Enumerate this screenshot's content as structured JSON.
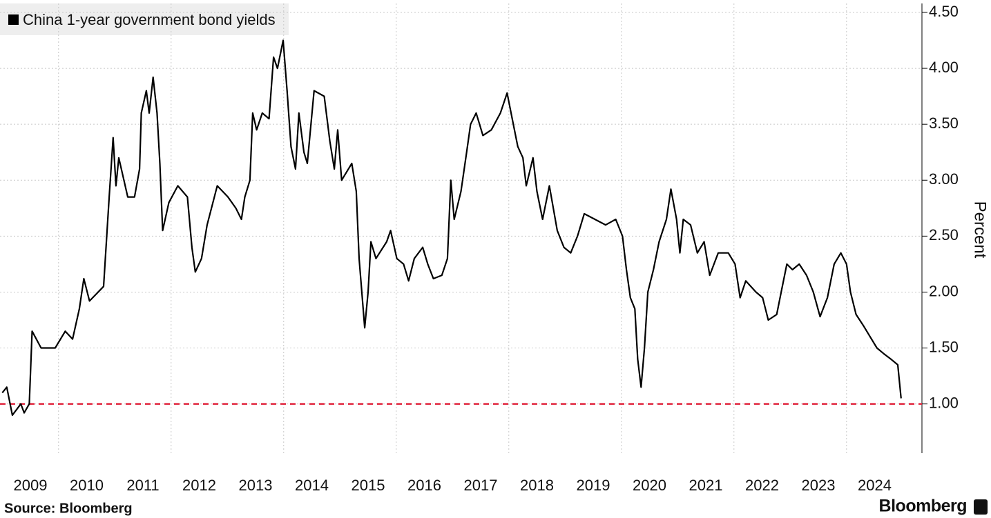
{
  "chart_data": {
    "type": "line",
    "legend": "China 1-year government bond yields",
    "ylabel": "Percent",
    "source": "Source: Bloomberg",
    "brand": "Bloomberg",
    "reference_line": {
      "value": 1,
      "color": "#e0243c"
    },
    "series": [
      {
        "name": "China 1-year government bond yields",
        "color": "#000000",
        "x": [
          2009.0,
          2009.08,
          2009.18,
          2009.33,
          2009.39,
          2009.48,
          2009.53,
          2009.69,
          2009.94,
          2010.12,
          2010.25,
          2010.37,
          2010.45,
          2010.55,
          2010.8,
          2010.9,
          2010.97,
          2011.02,
          2011.07,
          2011.23,
          2011.35,
          2011.44,
          2011.47,
          2011.56,
          2011.61,
          2011.68,
          2011.75,
          2011.8,
          2011.85,
          2011.96,
          2012.12,
          2012.29,
          2012.37,
          2012.43,
          2012.54,
          2012.64,
          2012.82,
          2013.01,
          2013.15,
          2013.25,
          2013.31,
          2013.4,
          2013.45,
          2013.52,
          2013.62,
          2013.74,
          2013.82,
          2013.89,
          2013.99,
          2014.06,
          2014.13,
          2014.21,
          2014.27,
          2014.36,
          2014.42,
          2014.54,
          2014.72,
          2014.82,
          2014.9,
          2014.96,
          2015.03,
          2015.21,
          2015.29,
          2015.34,
          2015.44,
          2015.5,
          2015.55,
          2015.64,
          2015.83,
          2015.9,
          2016.01,
          2016.13,
          2016.22,
          2016.32,
          2016.47,
          2016.56,
          2016.66,
          2016.81,
          2016.91,
          2016.97,
          2017.03,
          2017.15,
          2017.25,
          2017.32,
          2017.42,
          2017.54,
          2017.69,
          2017.85,
          2017.97,
          2018.06,
          2018.16,
          2018.25,
          2018.31,
          2018.43,
          2018.5,
          2018.6,
          2018.72,
          2018.86,
          2018.98,
          2019.1,
          2019.22,
          2019.34,
          2019.53,
          2019.72,
          2019.9,
          2020.02,
          2020.09,
          2020.16,
          2020.24,
          2020.29,
          2020.35,
          2020.41,
          2020.47,
          2020.57,
          2020.67,
          2020.8,
          2020.88,
          2020.98,
          2021.04,
          2021.1,
          2021.23,
          2021.35,
          2021.47,
          2021.57,
          2021.72,
          2021.9,
          2022.02,
          2022.11,
          2022.21,
          2022.39,
          2022.51,
          2022.61,
          2022.76,
          2022.84,
          2022.94,
          2023.04,
          2023.16,
          2023.29,
          2023.41,
          2023.53,
          2023.66,
          2023.78,
          2023.9,
          2024.0,
          2024.07,
          2024.17,
          2024.3,
          2024.42,
          2024.54,
          2024.66,
          2024.79,
          2024.91,
          2024.97
        ],
        "values": [
          1.1,
          1.15,
          0.9,
          1.0,
          0.92,
          1.0,
          1.65,
          1.5,
          1.5,
          1.65,
          1.58,
          1.85,
          2.12,
          1.92,
          2.05,
          2.85,
          3.38,
          2.95,
          3.2,
          2.85,
          2.85,
          3.1,
          3.6,
          3.8,
          3.6,
          3.92,
          3.6,
          3.15,
          2.55,
          2.8,
          2.95,
          2.85,
          2.4,
          2.18,
          2.3,
          2.6,
          2.95,
          2.85,
          2.75,
          2.65,
          2.85,
          3.0,
          3.6,
          3.45,
          3.6,
          3.55,
          4.1,
          4.0,
          4.25,
          3.8,
          3.3,
          3.1,
          3.6,
          3.25,
          3.15,
          3.8,
          3.75,
          3.35,
          3.1,
          3.45,
          3.0,
          3.15,
          2.9,
          2.3,
          1.68,
          2.0,
          2.45,
          2.3,
          2.45,
          2.55,
          2.3,
          2.25,
          2.1,
          2.3,
          2.4,
          2.25,
          2.12,
          2.15,
          2.3,
          3.0,
          2.65,
          2.9,
          3.25,
          3.5,
          3.6,
          3.4,
          3.45,
          3.6,
          3.78,
          3.55,
          3.3,
          3.2,
          2.95,
          3.2,
          2.9,
          2.65,
          2.95,
          2.55,
          2.4,
          2.35,
          2.5,
          2.7,
          2.65,
          2.6,
          2.65,
          2.5,
          2.2,
          1.95,
          1.85,
          1.4,
          1.15,
          1.5,
          2.0,
          2.2,
          2.45,
          2.65,
          2.92,
          2.65,
          2.35,
          2.65,
          2.6,
          2.35,
          2.45,
          2.15,
          2.35,
          2.35,
          2.25,
          1.95,
          2.1,
          2.0,
          1.95,
          1.75,
          1.8,
          2.0,
          2.25,
          2.2,
          2.25,
          2.15,
          2.0,
          1.78,
          1.95,
          2.25,
          2.35,
          2.25,
          2.0,
          1.8,
          1.7,
          1.6,
          1.5,
          1.45,
          1.4,
          1.35,
          1.05
        ]
      }
    ],
    "xlim": [
      2008.96,
      2025.34
    ],
    "xticks": [
      2009,
      2010,
      2011,
      2012,
      2013,
      2014,
      2015,
      2016,
      2017,
      2018,
      2019,
      2020,
      2021,
      2022,
      2023,
      2024
    ],
    "ylim": [
      0.56,
      4.58
    ],
    "yticks": [
      {
        "value": 1,
        "label": "1.00"
      },
      {
        "value": 1.5,
        "label": "1.50"
      },
      {
        "value": 2,
        "label": "2.00"
      },
      {
        "value": 2.5,
        "label": "2.50"
      },
      {
        "value": 3,
        "label": "3.00"
      },
      {
        "value": 3.5,
        "label": "3.50"
      },
      {
        "value": 4,
        "label": "4.00"
      },
      {
        "value": 4.5,
        "label": "4.50"
      }
    ],
    "grid": true
  }
}
